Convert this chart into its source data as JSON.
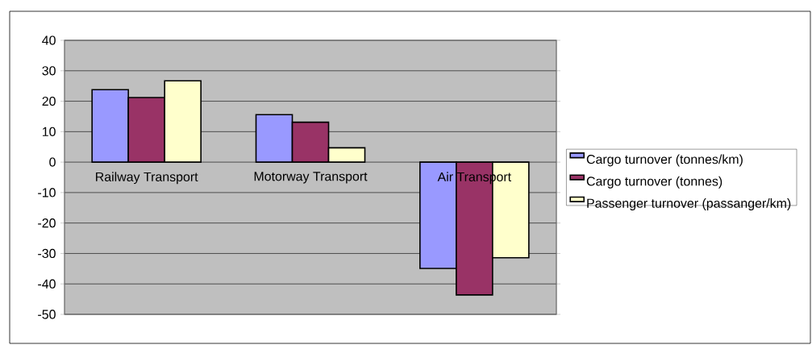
{
  "chart_data": {
    "type": "bar",
    "categories": [
      "Railway Transport",
      "Motorway Transport",
      "Air Transport"
    ],
    "series": [
      {
        "name": "Cargo turnover (tonnes/km)",
        "color": "#9999ff",
        "values": [
          23.8,
          15.6,
          -34.9
        ]
      },
      {
        "name": "Cargo turnover (tonnes)",
        "color": "#993366",
        "values": [
          21.2,
          13.1,
          -43.6
        ]
      },
      {
        "name": "Passenger turnover (passanger/km)",
        "color": "#ffffcc",
        "values": [
          26.7,
          4.7,
          -31.4
        ]
      }
    ],
    "ylim": [
      -50,
      40
    ],
    "yticks": [
      -50,
      -40,
      -30,
      -20,
      -10,
      0,
      10,
      20,
      30,
      40
    ],
    "grid": "y",
    "legend": "right"
  }
}
